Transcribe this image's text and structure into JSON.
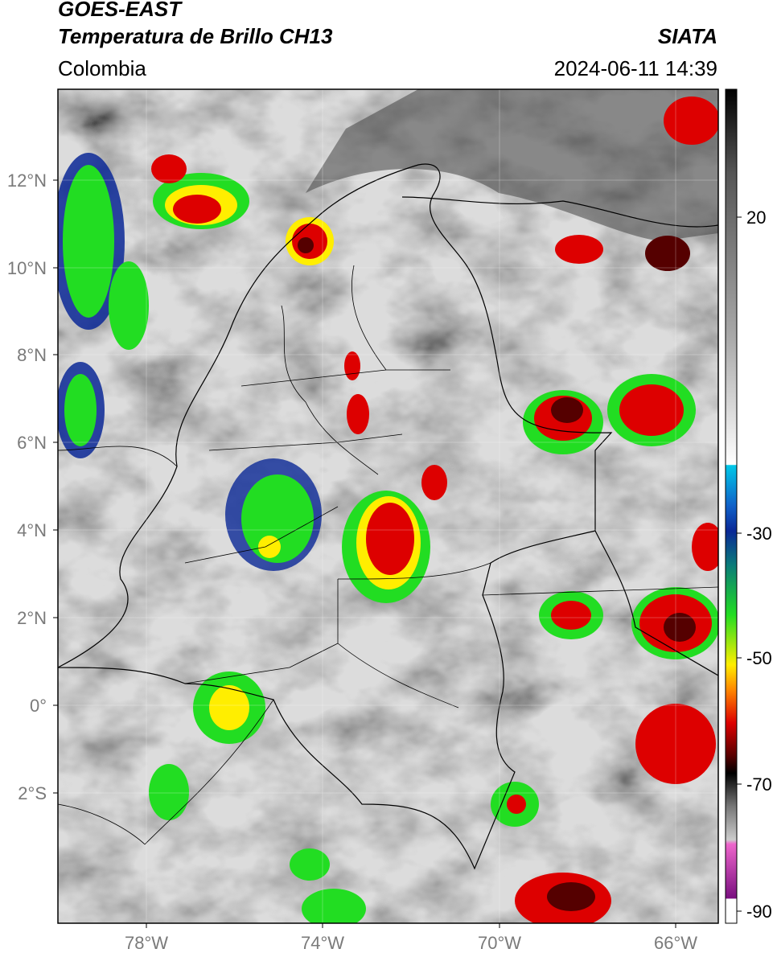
{
  "header": {
    "satellite": "GOES-EAST",
    "product": "Temperatura de Brillo CH13",
    "region": "Colombia",
    "organization": "SIATA",
    "timestamp": "2024-06-11 14:39"
  },
  "axes": {
    "lat_labels": [
      "12°N",
      "10°N",
      "8°N",
      "6°N",
      "4°N",
      "2°N",
      "0°",
      "2°S"
    ],
    "lon_labels": [
      "78°W",
      "74°W",
      "70°W",
      "66°W"
    ]
  },
  "colorbar": {
    "labels": [
      "20",
      "-30",
      "-50",
      "-70",
      "-90"
    ],
    "range": [
      -92,
      40
    ],
    "colors": {
      "black": "#000000",
      "gray": "#808080",
      "white": "#ffffff",
      "cyan": "#00c8e8",
      "blue": "#0a2896",
      "teal": "#0a7a7a",
      "green": "#22dd22",
      "yellow": "#ffee00",
      "orange": "#ff8800",
      "red": "#dd0000",
      "darkred": "#550000",
      "pink": "#ee66cc",
      "purple": "#7a1080"
    }
  }
}
